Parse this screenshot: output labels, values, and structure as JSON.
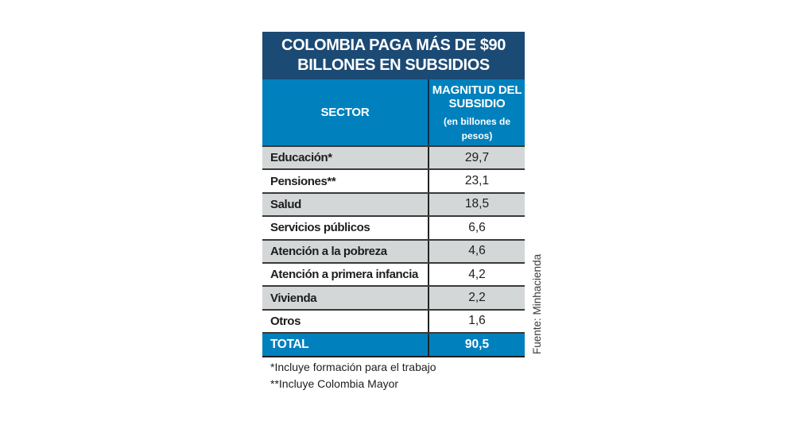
{
  "title": {
    "line1": "COLOMBIA PAGA MÁS DE $90",
    "line2": "BILLONES EN SUBSIDIOS"
  },
  "table": {
    "columns": {
      "sector": "SECTOR",
      "magnitude_line1": "MAGNITUD DEL",
      "magnitude_line2": "SUBSIDIO",
      "magnitude_note_line1": "(en billones de",
      "magnitude_note_line2": "pesos)"
    },
    "rows": [
      {
        "sector": "Educación*",
        "value": "29,7"
      },
      {
        "sector": "Pensiones**",
        "value": "23,1"
      },
      {
        "sector": "Salud",
        "value": "18,5"
      },
      {
        "sector": "Servicios públicos",
        "value": "6,6"
      },
      {
        "sector": "Atención a la pobreza",
        "value": "4,6"
      },
      {
        "sector": "Atención a primera infancia",
        "value": "4,2"
      },
      {
        "sector": "Vivienda",
        "value": "2,2"
      },
      {
        "sector": "Otros",
        "value": "1,6"
      }
    ],
    "total": {
      "label": "TOTAL",
      "value": "90,5"
    }
  },
  "footnotes": {
    "note1": "*Incluye formación para el trabajo",
    "note2": "**Incluye Colombia Mayor"
  },
  "source": "Fuente: Minhacienda",
  "colors": {
    "navy": "#1b4a74",
    "blue": "#0081bd",
    "row_gray": "#d4d7d8",
    "text_dark": "#1d1d1d"
  },
  "chart_data": {
    "type": "table",
    "title": "COLOMBIA PAGA MÁS DE $90 BILLONES EN SUBSIDIOS",
    "columns": [
      "SECTOR",
      "MAGNITUD DEL SUBSIDIO (en billones de pesos)"
    ],
    "categories": [
      "Educación*",
      "Pensiones**",
      "Salud",
      "Servicios públicos",
      "Atención a la pobreza",
      "Atención a primera infancia",
      "Vivienda",
      "Otros"
    ],
    "values": [
      29.7,
      23.1,
      18.5,
      6.6,
      4.6,
      4.2,
      2.2,
      1.6
    ],
    "total": 90.5,
    "footnotes": [
      "*Incluye formación para el trabajo",
      "**Incluye Colombia Mayor"
    ],
    "source": "Fuente: Minhacienda"
  }
}
